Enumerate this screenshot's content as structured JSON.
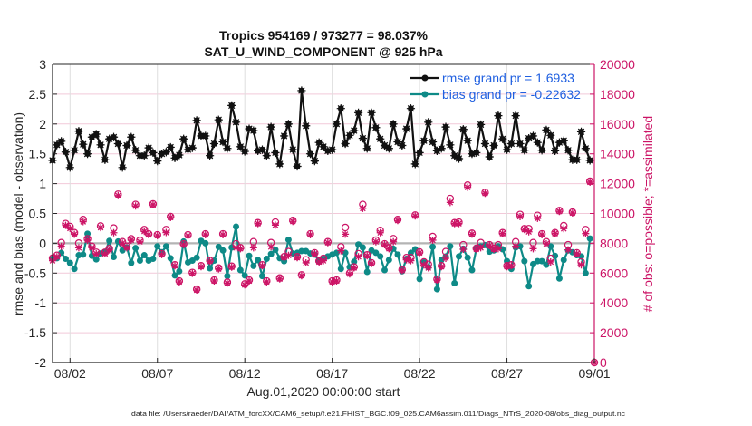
{
  "figure": {
    "title_line1": "Tropics 954169 / 973277 = 98.037%",
    "title_line2": "SAT_U_WIND_COMPONENT @ 925 hPa",
    "footnote": "data file: /Users/raeder/DAI/ATM_forcXX/CAM6_setup/f.e21.FHIST_BGC.f09_025.CAM6assim.011/Diags_NTrS_2020-08/obs_diag_output.nc"
  },
  "colors": {
    "rmse": "#111111",
    "bias": "#0e8a87",
    "obs": "#cc1466",
    "legend_text": "#1f5fe0",
    "grid_horizontal": "#f2c9d9",
    "grid_vertical": "#dedede",
    "zero_line": "#b4b4b4"
  },
  "chart_data": {
    "type": "line",
    "title": [
      "Tropics 954169 / 973277 = 98.037%",
      "SAT_U_WIND_COMPONENT @ 925 hPa"
    ],
    "xlabel": "Aug.01,2020 00:00:00 start",
    "ylabel": "rmse and bias (model - observation)",
    "y2label": "# of obs: o=possible; *=assimilated",
    "xlim_days": [
      0,
      31
    ],
    "x_step_days": 0.25,
    "x_ticks": [
      {
        "day": 1,
        "label": "08/02"
      },
      {
        "day": 6,
        "label": "08/07"
      },
      {
        "day": 11,
        "label": "08/12"
      },
      {
        "day": 16,
        "label": "08/17"
      },
      {
        "day": 21,
        "label": "08/22"
      },
      {
        "day": 26,
        "label": "08/27"
      },
      {
        "day": 31,
        "label": "09/01"
      }
    ],
    "ylim": [
      -2,
      3
    ],
    "y_ticks": [
      {
        "value": 3,
        "label": "3"
      },
      {
        "value": 2.5,
        "label": "2.5"
      },
      {
        "value": 2,
        "label": "2"
      },
      {
        "value": 1.5,
        "label": "1.5"
      },
      {
        "value": 1,
        "label": "1"
      },
      {
        "value": 0.5,
        "label": "0.5"
      },
      {
        "value": 0,
        "label": "0"
      },
      {
        "value": -0.5,
        "label": "-0.5"
      },
      {
        "value": -1,
        "label": "-1"
      },
      {
        "value": -1.5,
        "label": "-1.5"
      },
      {
        "value": -2,
        "label": "-2"
      }
    ],
    "y2lim": [
      0,
      20000
    ],
    "y2_ticks": [
      {
        "value": 20000,
        "label": "20000"
      },
      {
        "value": 18000,
        "label": "18000"
      },
      {
        "value": 16000,
        "label": "16000"
      },
      {
        "value": 14000,
        "label": "14000"
      },
      {
        "value": 12000,
        "label": "12000"
      },
      {
        "value": 10000,
        "label": "10000"
      },
      {
        "value": 8000,
        "label": "8000"
      },
      {
        "value": 6000,
        "label": "6000"
      },
      {
        "value": 4000,
        "label": "4000"
      },
      {
        "value": 2000,
        "label": "2000"
      },
      {
        "value": 0,
        "label": "0"
      }
    ],
    "grid": true,
    "zero_line": true,
    "legend_position": "top-right",
    "series": [
      {
        "name": "rmse grand pr = 1.6933",
        "axis": "left",
        "style": "line-marker",
        "values": [
          1.39,
          1.65,
          1.71,
          1.53,
          1.27,
          1.56,
          1.88,
          1.66,
          1.5,
          1.78,
          1.83,
          1.65,
          1.4,
          1.75,
          1.78,
          1.67,
          1.27,
          1.64,
          1.78,
          1.56,
          1.47,
          1.47,
          1.6,
          1.52,
          1.38,
          1.5,
          1.53,
          1.61,
          1.43,
          1.48,
          1.75,
          1.57,
          1.6,
          2.06,
          1.8,
          1.8,
          1.47,
          1.67,
          2.07,
          1.7,
          1.59,
          2.31,
          2.03,
          1.62,
          1.54,
          1.92,
          1.89,
          1.55,
          1.57,
          1.47,
          1.95,
          1.52,
          1.33,
          1.8,
          2.0,
          1.57,
          1.29,
          2.56,
          1.97,
          1.5,
          1.38,
          1.69,
          1.62,
          1.55,
          1.57,
          2.0,
          2.26,
          1.67,
          1.81,
          1.89,
          2.19,
          1.76,
          1.59,
          2.19,
          1.94,
          1.75,
          1.64,
          1.59,
          2.0,
          1.7,
          1.64,
          1.92,
          2.26,
          1.33,
          1.52,
          1.72,
          2.03,
          1.7,
          1.55,
          1.59,
          1.95,
          1.65,
          1.47,
          1.42,
          1.91,
          1.72,
          1.5,
          1.52,
          1.99,
          1.67,
          1.45,
          1.64,
          2.14,
          1.75,
          1.57,
          1.67,
          2.14,
          1.67,
          1.56,
          1.76,
          1.8,
          1.69,
          1.56,
          1.9,
          1.81,
          1.55,
          1.69,
          1.72,
          1.56,
          1.4,
          1.4,
          1.87,
          1.59,
          1.39
        ]
      },
      {
        "name": "bias grand pr = -0.22632",
        "axis": "left",
        "style": "line-marker",
        "values": [
          -0.26,
          -0.25,
          -0.16,
          -0.26,
          -0.33,
          -0.43,
          -0.2,
          -0.19,
          0.16,
          -0.21,
          -0.27,
          -0.17,
          -0.15,
          0.04,
          -0.23,
          0.03,
          -0.12,
          -0.07,
          -0.33,
          -0.08,
          -0.29,
          -0.2,
          -0.29,
          -0.26,
          -0.05,
          -0.15,
          -0.05,
          -0.25,
          -0.54,
          -0.47,
          0.03,
          -0.32,
          -0.29,
          -0.24,
          0.04,
          0.0,
          -0.42,
          -0.29,
          -0.06,
          -0.12,
          -0.55,
          -0.07,
          0.28,
          -0.45,
          -0.54,
          -0.21,
          -0.38,
          -0.28,
          -0.55,
          -0.26,
          -0.18,
          -0.11,
          -0.25,
          -0.3,
          0.06,
          -0.17,
          -0.16,
          -0.13,
          -0.13,
          -0.17,
          -0.19,
          -0.3,
          -0.26,
          -0.22,
          -0.19,
          -0.16,
          -0.43,
          -0.16,
          -0.4,
          -0.31,
          -0.02,
          -0.07,
          -0.48,
          -0.12,
          -0.16,
          -0.22,
          -0.45,
          -0.28,
          -0.09,
          -0.19,
          -0.47,
          -0.26,
          -0.16,
          -0.1,
          -0.6,
          -0.32,
          -0.4,
          -0.06,
          -0.77,
          -0.28,
          -0.22,
          -0.05,
          -0.67,
          -0.22,
          -0.09,
          -0.24,
          -0.45,
          -0.09,
          -0.05,
          -0.03,
          -0.14,
          -0.12,
          -0.05,
          -0.1,
          -0.3,
          -0.43,
          -0.07,
          -0.05,
          -0.3,
          -0.72,
          -0.35,
          -0.3,
          -0.3,
          -0.36,
          -0.05,
          -0.21,
          -0.59,
          -0.28,
          -0.12,
          -0.15,
          -0.2,
          -0.22,
          -0.5,
          0.08
        ]
      },
      {
        "name": "possible",
        "axis": "right",
        "style": "open-circle",
        "values": [
          7000,
          7190,
          8040,
          9320,
          9120,
          8710,
          8010,
          9590,
          8300,
          7800,
          7400,
          9160,
          7400,
          7650,
          9020,
          11290,
          8100,
          7800,
          8300,
          10600,
          8200,
          8920,
          8630,
          10640,
          8570,
          7300,
          8920,
          9790,
          6550,
          5470,
          7960,
          8570,
          6040,
          4920,
          6490,
          8630,
          6850,
          5530,
          6340,
          8630,
          5390,
          6460,
          7960,
          7700,
          5270,
          5530,
          8100,
          9380,
          6550,
          5470,
          8040,
          9420,
          5670,
          7100,
          7440,
          9530,
          7100,
          5880,
          6890,
          8630,
          7360,
          6810,
          6990,
          8100,
          5470,
          5530,
          7760,
          9060,
          6000,
          6410,
          7300,
          10600,
          7220,
          6690,
          8210,
          8860,
          7960,
          7700,
          8310,
          9590,
          6240,
          7040,
          7040,
          9890,
          7420,
          6750,
          6590,
          8450,
          5590,
          6490,
          7440,
          11000,
          9380,
          9420,
          7900,
          11900,
          8670,
          7660,
          8040,
          11410,
          7900,
          7660,
          7900,
          8710,
          6490,
          6550,
          8100,
          9930,
          8980,
          8980,
          8040,
          9870,
          8630,
          8100,
          6990,
          8710,
          10190,
          9180,
          7900,
          10090,
          7360,
          6750,
          8920,
          12160,
          0
        ]
      },
      {
        "name": "assimilated",
        "axis": "right",
        "style": "asterisk",
        "values": [
          6830,
          7100,
          7800,
          9200,
          9000,
          8600,
          7700,
          9450,
          8210,
          7700,
          7300,
          9050,
          7300,
          7560,
          8710,
          11200,
          8010,
          7700,
          8210,
          10500,
          8100,
          8800,
          8570,
          10580,
          8510,
          7240,
          8720,
          9730,
          6490,
          5410,
          7900,
          8510,
          5980,
          4860,
          6430,
          8570,
          6790,
          5470,
          6280,
          8570,
          5330,
          6400,
          7700,
          7640,
          5210,
          5470,
          7700,
          9320,
          6490,
          5410,
          7760,
          9220,
          5610,
          7040,
          7190,
          9470,
          7040,
          5820,
          6690,
          8570,
          7300,
          6750,
          6830,
          8040,
          5410,
          5470,
          7500,
          8610,
          5940,
          6350,
          7100,
          10340,
          7160,
          6630,
          8100,
          8710,
          7900,
          7640,
          8100,
          9530,
          6180,
          6890,
          6830,
          9830,
          7360,
          6550,
          6350,
          8210,
          5530,
          6430,
          6990,
          10740,
          9320,
          9320,
          7600,
          11750,
          8610,
          7600,
          7700,
          11350,
          7840,
          7600,
          7640,
          8650,
          6430,
          6490,
          7800,
          9790,
          8920,
          8770,
          7640,
          9670,
          8570,
          7970,
          6750,
          8650,
          10140,
          8980,
          7560,
          10030,
          7300,
          6550,
          8650,
          12100,
          0
        ]
      }
    ],
    "legend": [
      {
        "label": "rmse grand pr = 1.6933",
        "series": "rmse"
      },
      {
        "label": "bias grand pr = -0.22632",
        "series": "bias"
      }
    ]
  }
}
